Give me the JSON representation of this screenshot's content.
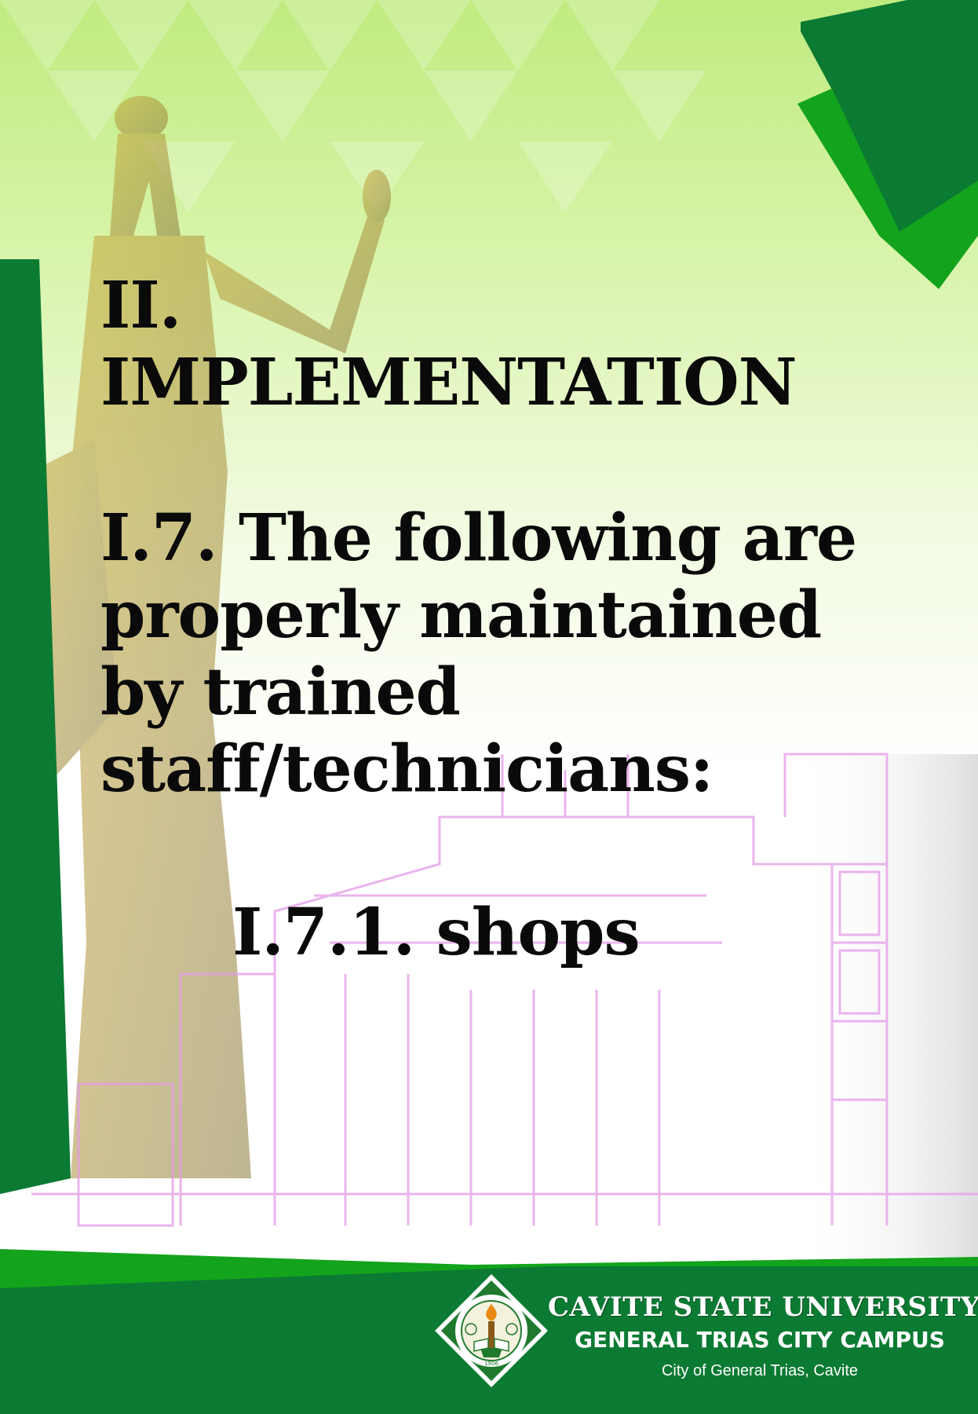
{
  "slide": {
    "section_heading": "II. IMPLEMENTATION",
    "item_text": "I.7. The following are properly maintained by trained staff/technicians:",
    "sub_item": "I.7.1. shops"
  },
  "footer": {
    "university_name": "CAVITE STATE UNIVERSITY",
    "campus_name": "GENERAL TRIAS CITY CAMPUS",
    "campus_location": "City of General Trias, Cavite",
    "seal_year": "1906",
    "seal_text_top": "CAVITE STATE UNIVERSITY",
    "seal_text_bottom": "CAVITE PHILIPPINES"
  },
  "colors": {
    "dark_green": "#0b7a32",
    "bright_green": "#13a31c",
    "light_green": "#c7ee8f",
    "text": "#0a0a0a"
  },
  "icons": {
    "footer_logo": "university-seal-icon",
    "background_statue": "statue-illustration",
    "background_building": "building-outline-illustration"
  }
}
